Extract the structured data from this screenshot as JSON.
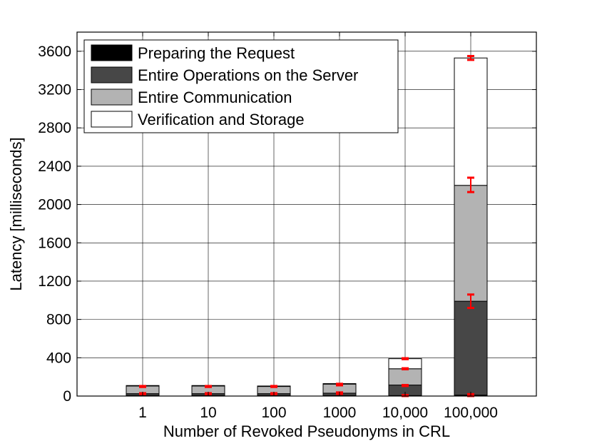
{
  "chart_data": {
    "type": "bar",
    "stacked": true,
    "title": "",
    "xlabel": "Number of Revoked Pseudonyms in CRL",
    "ylabel": "Latency [milliseconds]",
    "categories": [
      "1",
      "10",
      "100",
      "1000",
      "10,000",
      "100,000"
    ],
    "ylim": [
      0,
      3800
    ],
    "yticks": [
      0,
      400,
      800,
      1200,
      1600,
      2000,
      2400,
      2800,
      3200,
      3600
    ],
    "grid": true,
    "legend_position": "top-left",
    "series": [
      {
        "name": "Preparing the Request",
        "color": "#000000",
        "values": [
          5,
          5,
          5,
          5,
          5,
          10
        ]
      },
      {
        "name": "Entire Operations on the Server",
        "color": "#474747",
        "values": [
          20,
          20,
          20,
          25,
          110,
          980
        ]
      },
      {
        "name": "Entire Communication",
        "color": "#b3b3b3",
        "values": [
          80,
          80,
          75,
          95,
          170,
          1210
        ]
      },
      {
        "name": "Verification and Storage",
        "color": "#ffffff",
        "values": [
          5,
          5,
          5,
          5,
          105,
          1330
        ]
      }
    ],
    "error_bars": [
      {
        "center": 100,
        "low": 95,
        "high": 105,
        "category": 0
      },
      {
        "center": 25,
        "low": 20,
        "high": 30,
        "category": 0
      },
      {
        "center": 100,
        "low": 95,
        "high": 105,
        "category": 1
      },
      {
        "center": 25,
        "low": 20,
        "high": 30,
        "category": 1
      },
      {
        "center": 100,
        "low": 95,
        "high": 105,
        "category": 2
      },
      {
        "center": 25,
        "low": 20,
        "high": 30,
        "category": 2
      },
      {
        "center": 120,
        "low": 112,
        "high": 128,
        "category": 3
      },
      {
        "center": 30,
        "low": 22,
        "high": 38,
        "category": 3
      },
      {
        "center": 390,
        "low": 385,
        "high": 395,
        "category": 4
      },
      {
        "center": 285,
        "low": 280,
        "high": 290,
        "category": 4
      },
      {
        "center": 110,
        "low": 105,
        "high": 115,
        "category": 4
      },
      {
        "center": 5,
        "low": 0,
        "high": 10,
        "category": 4
      },
      {
        "center": 3530,
        "low": 3510,
        "high": 3550,
        "category": 5
      },
      {
        "center": 2200,
        "low": 2130,
        "high": 2280,
        "category": 5
      },
      {
        "center": 990,
        "low": 920,
        "high": 1060,
        "category": 5
      },
      {
        "center": 10,
        "low": 0,
        "high": 20,
        "category": 5
      }
    ],
    "error_color": "#ff0000"
  }
}
